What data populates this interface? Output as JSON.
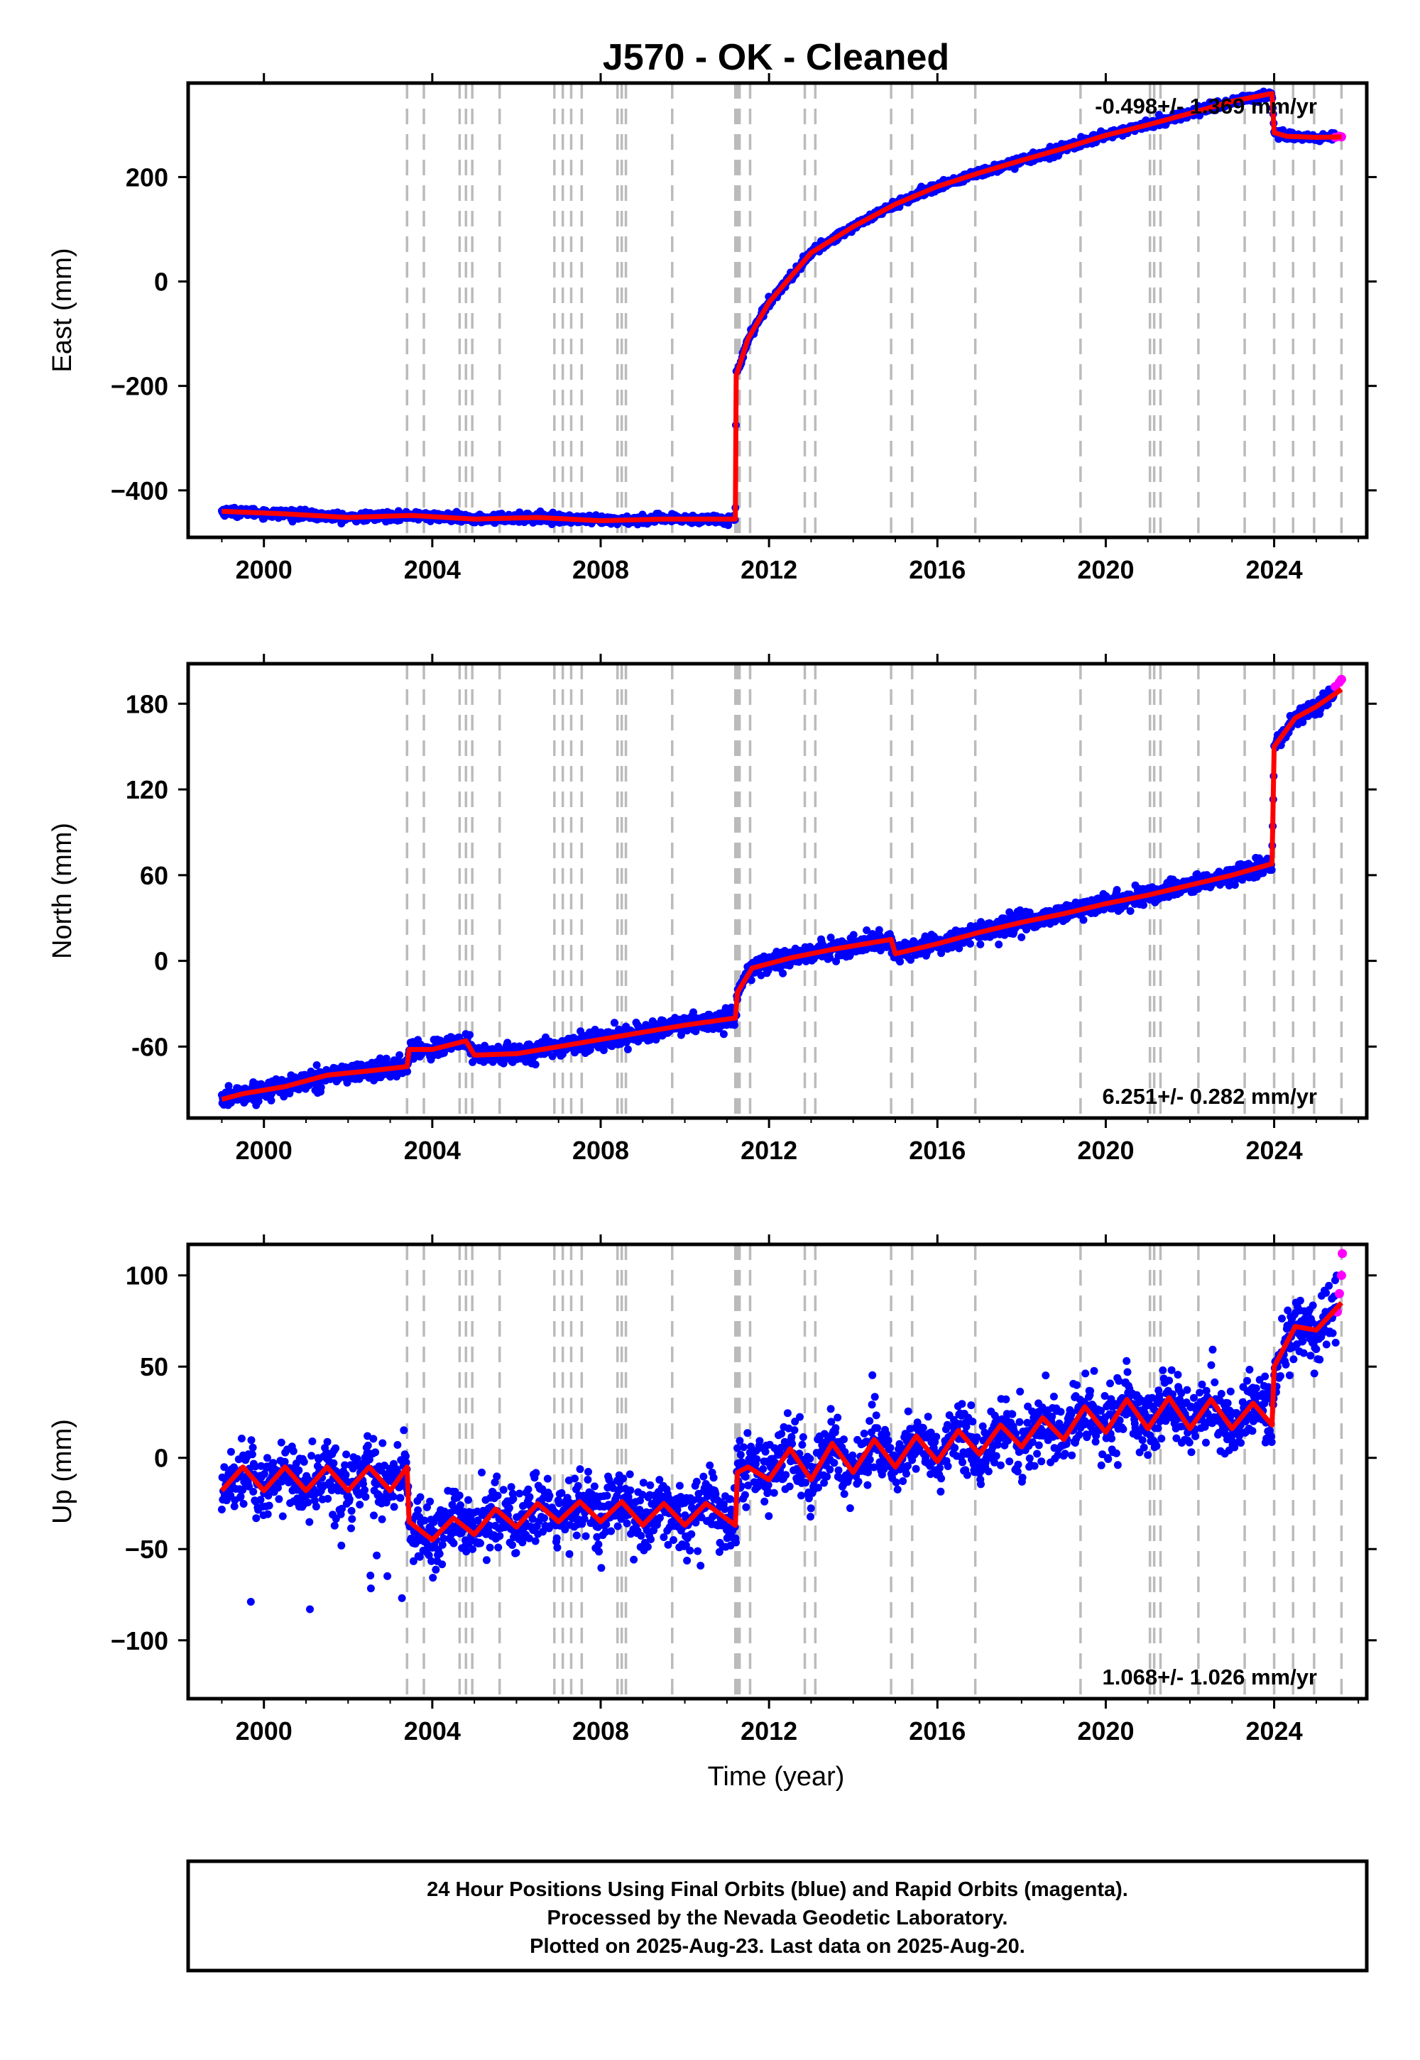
{
  "chart_data": {
    "type": "scatter",
    "title": "J570  - OK - Cleaned",
    "xlabel": "Time (year)",
    "xlim": [
      1998.2,
      2026.2
    ],
    "x_ticks": [
      2000,
      2004,
      2008,
      2012,
      2016,
      2020,
      2024
    ],
    "x_tick_labels": [
      "2000",
      "2004",
      "2008",
      "2012",
      "2016",
      "2020",
      "2024"
    ],
    "equipment_change_years": [
      2003.4,
      2003.8,
      2004.65,
      2004.8,
      2004.95,
      2005.6,
      2006.9,
      2007.1,
      2007.3,
      2007.55,
      2008.4,
      2008.5,
      2008.6,
      2009.7,
      2011.2,
      2011.25,
      2011.3,
      2011.55,
      2012.85,
      2013.1,
      2014.9,
      2015.4,
      2016.9,
      2019.4,
      2021.05,
      2021.15,
      2021.3,
      2022.2,
      2023.3,
      2024.0,
      2024.45,
      2024.95,
      2025.6
    ],
    "colors": {
      "final_orbits": "#0000ff",
      "rapid_orbits": "#ff00ff",
      "model": "#ff0000",
      "equipment_lines": "#bbbbbb"
    },
    "panels": [
      {
        "name": "East",
        "ylabel": "East (mm)",
        "ylim": [
          -490,
          380
        ],
        "y_ticks": [
          -400,
          -200,
          0,
          200
        ],
        "y_tick_labels": [
          "−400",
          "−200",
          "0",
          "200"
        ],
        "rate_label": "-0.498+/- 1.369 mm/yr",
        "rate_position": "top-right",
        "series": [
          {
            "values": [
              [
                1999.0,
                -440
              ],
              [
                2000.5,
                -445
              ],
              [
                2002.0,
                -452
              ],
              [
                2003.5,
                -448
              ],
              [
                2005.0,
                -455
              ],
              [
                2006.5,
                -452
              ],
              [
                2008.0,
                -458
              ],
              [
                2009.5,
                -455
              ],
              [
                2011.2,
                -455
              ],
              [
                2011.22,
                -180
              ],
              [
                2011.5,
                -110
              ],
              [
                2012.0,
                -40
              ],
              [
                2013.0,
                55
              ],
              [
                2014.0,
                105
              ],
              [
                2015.0,
                148
              ],
              [
                2016.0,
                182
              ],
              [
                2017.0,
                208
              ],
              [
                2018.0,
                232
              ],
              [
                2019.0,
                255
              ],
              [
                2020.0,
                280
              ],
              [
                2021.0,
                300
              ],
              [
                2022.0,
                322
              ],
              [
                2023.0,
                345
              ],
              [
                2023.95,
                360
              ],
              [
                2024.0,
                285
              ],
              [
                2024.3,
                278
              ],
              [
                2025.0,
                276
              ],
              [
                2025.6,
                277
              ]
            ]
          }
        ],
        "rapid": [
          [
            2025.45,
            276
          ],
          [
            2025.55,
            278
          ],
          [
            2025.6,
            277
          ]
        ]
      },
      {
        "name": "North",
        "ylabel": "North (mm)",
        "ylim": [
          -110,
          208
        ],
        "y_ticks": [
          -60,
          0,
          60,
          120,
          180
        ],
        "y_tick_labels": [
          "-60",
          "0",
          "60",
          "120",
          "180"
        ],
        "rate_label": "6.251+/- 0.282 mm/yr",
        "rate_position": "bottom-right",
        "series": [
          {
            "values": [
              [
                1999.0,
                -97
              ],
              [
                1999.5,
                -93
              ],
              [
                2000.5,
                -88
              ],
              [
                2001.5,
                -80
              ],
              [
                2002.5,
                -77
              ],
              [
                2003.4,
                -74
              ],
              [
                2003.45,
                -62
              ],
              [
                2004.0,
                -62
              ],
              [
                2004.8,
                -56
              ],
              [
                2005.0,
                -66
              ],
              [
                2006.0,
                -65
              ],
              [
                2007.0,
                -60
              ],
              [
                2008.0,
                -55
              ],
              [
                2009.0,
                -50
              ],
              [
                2010.0,
                -45
              ],
              [
                2011.2,
                -40
              ],
              [
                2011.25,
                -22
              ],
              [
                2011.6,
                -5
              ],
              [
                2012.5,
                2
              ],
              [
                2013.5,
                8
              ],
              [
                2014.9,
                15
              ],
              [
                2015.0,
                5
              ],
              [
                2016.0,
                12
              ],
              [
                2017.0,
                20
              ],
              [
                2018.0,
                27
              ],
              [
                2019.0,
                33
              ],
              [
                2020.0,
                40
              ],
              [
                2021.0,
                46
              ],
              [
                2022.0,
                53
              ],
              [
                2023.0,
                60
              ],
              [
                2023.95,
                68
              ],
              [
                2024.0,
                150
              ],
              [
                2024.5,
                170
              ],
              [
                2025.0,
                178
              ],
              [
                2025.6,
                190
              ]
            ]
          }
        ],
        "rapid": [
          [
            2025.45,
            192
          ],
          [
            2025.55,
            195
          ],
          [
            2025.6,
            197
          ]
        ]
      },
      {
        "name": "Up",
        "ylabel": "Up (mm)",
        "ylim": [
          -132,
          117
        ],
        "y_ticks": [
          -100,
          -50,
          0,
          50,
          100
        ],
        "y_tick_labels": [
          "−100",
          "−50",
          "0",
          "50",
          "100"
        ],
        "rate_label": "1.068+/- 1.026 mm/yr",
        "rate_position": "bottom-right",
        "series": [
          {
            "values": [
              [
                1999.0,
                -18
              ],
              [
                1999.5,
                -5
              ],
              [
                2000.0,
                -18
              ],
              [
                2000.5,
                -5
              ],
              [
                2001.0,
                -18
              ],
              [
                2001.5,
                -5
              ],
              [
                2002.0,
                -18
              ],
              [
                2002.5,
                -5
              ],
              [
                2003.0,
                -18
              ],
              [
                2003.4,
                -5
              ],
              [
                2003.45,
                -35
              ],
              [
                2004.0,
                -45
              ],
              [
                2004.5,
                -33
              ],
              [
                2005.0,
                -42
              ],
              [
                2005.5,
                -28
              ],
              [
                2006.0,
                -38
              ],
              [
                2006.5,
                -25
              ],
              [
                2007.0,
                -35
              ],
              [
                2007.5,
                -24
              ],
              [
                2008.0,
                -35
              ],
              [
                2008.5,
                -24
              ],
              [
                2009.0,
                -37
              ],
              [
                2009.5,
                -25
              ],
              [
                2010.0,
                -37
              ],
              [
                2010.5,
                -25
              ],
              [
                2011.2,
                -37
              ],
              [
                2011.25,
                -8
              ],
              [
                2011.5,
                -5
              ],
              [
                2012.0,
                -12
              ],
              [
                2012.5,
                5
              ],
              [
                2013.0,
                -12
              ],
              [
                2013.5,
                8
              ],
              [
                2014.0,
                -8
              ],
              [
                2014.5,
                10
              ],
              [
                2015.0,
                -5
              ],
              [
                2015.5,
                12
              ],
              [
                2016.0,
                -2
              ],
              [
                2016.5,
                15
              ],
              [
                2017.0,
                2
              ],
              [
                2017.5,
                18
              ],
              [
                2018.0,
                6
              ],
              [
                2018.5,
                22
              ],
              [
                2019.0,
                10
              ],
              [
                2019.5,
                28
              ],
              [
                2020.0,
                14
              ],
              [
                2020.5,
                32
              ],
              [
                2021.0,
                16
              ],
              [
                2021.5,
                33
              ],
              [
                2022.0,
                16
              ],
              [
                2022.5,
                32
              ],
              [
                2023.0,
                16
              ],
              [
                2023.5,
                30
              ],
              [
                2023.95,
                18
              ],
              [
                2024.0,
                50
              ],
              [
                2024.5,
                72
              ],
              [
                2025.0,
                70
              ],
              [
                2025.6,
                85
              ]
            ]
          }
        ],
        "rapid": [
          [
            2025.5,
            80
          ],
          [
            2025.55,
            90
          ],
          [
            2025.6,
            100
          ],
          [
            2025.62,
            112
          ]
        ]
      }
    ]
  },
  "footer": {
    "line1": "24 Hour Positions Using Final Orbits (blue) and Rapid Orbits (magenta).",
    "line2": "Processed by the Nevada Geodetic Laboratory.",
    "line3": "Plotted on 2025-Aug-23. Last data on 2025-Aug-20."
  }
}
